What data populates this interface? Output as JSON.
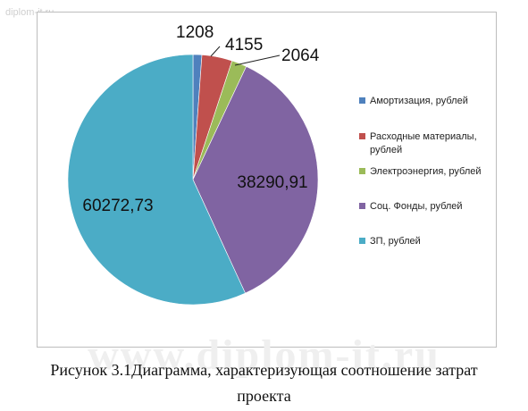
{
  "watermark_top": "diplom-it.ru",
  "watermark_bottom": "www.diplom-it.ru",
  "caption": "Рисунок 3.1Диаграмма, характеризующая соотношение затрат проекта",
  "chart_data": {
    "type": "pie",
    "title": "",
    "legend_position": "right",
    "series": [
      {
        "name": "Амортизация, рублей",
        "value": 1208,
        "label": "1208",
        "color": "#4F81BD"
      },
      {
        "name": "Расходные материалы, рублей",
        "value": 4155,
        "label": "4155",
        "color": "#C0504D"
      },
      {
        "name": "Электроэнергия, рублей",
        "value": 2064,
        "label": "2064",
        "color": "#9BBB59"
      },
      {
        "name": "Соц. Фонды, рублей",
        "value": 38290.91,
        "label": "38290,91",
        "color": "#8064A2"
      },
      {
        "name": "ЗП, рублей",
        "value": 60272.73,
        "label": "60272,73",
        "color": "#4BACC6"
      }
    ]
  }
}
